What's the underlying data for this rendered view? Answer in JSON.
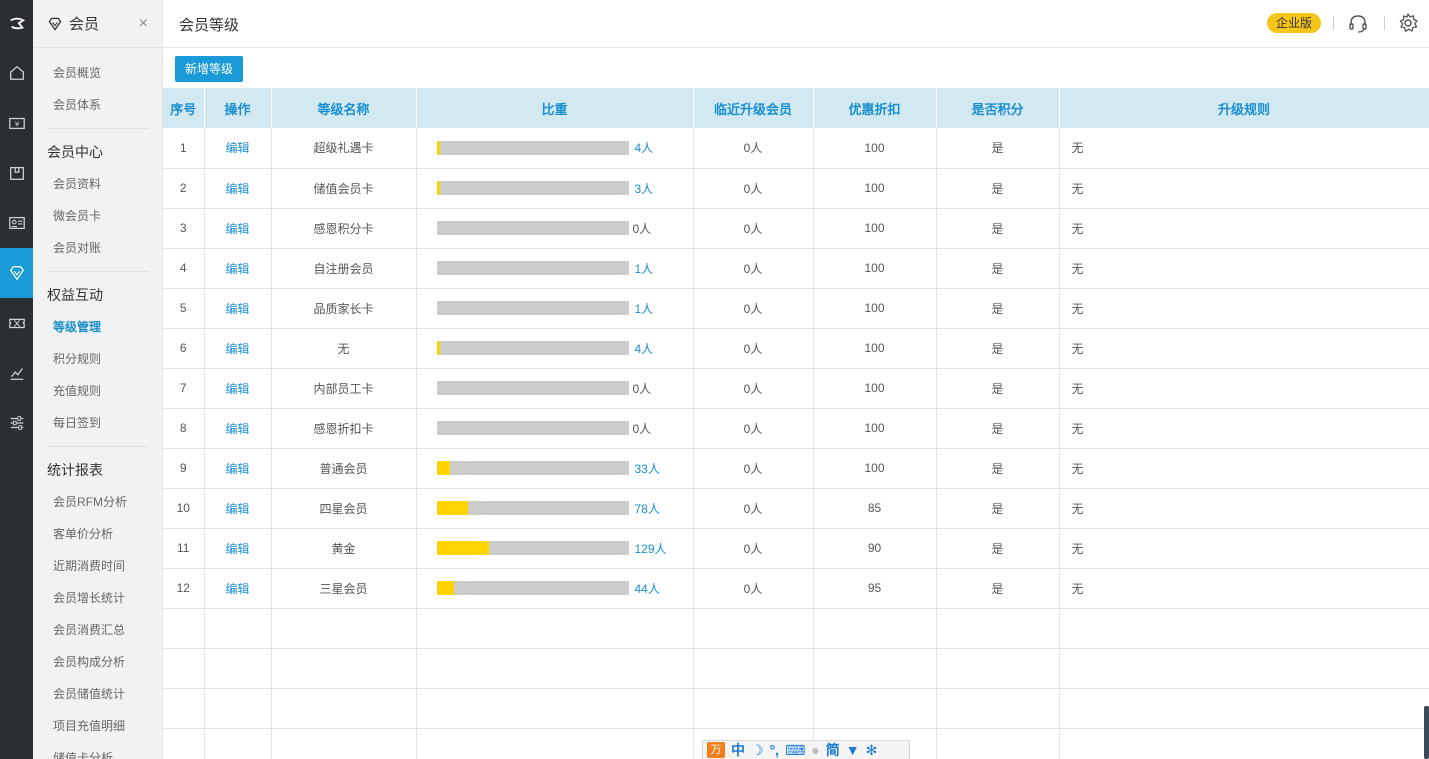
{
  "sidebar": {
    "title": "会员",
    "close": "×",
    "items_top": [
      "会员概览",
      "会员体系"
    ],
    "group1": "会员中心",
    "items_g1": [
      "会员资料",
      "微会员卡",
      "会员对账"
    ],
    "group2": "权益互动",
    "items_g2": [
      "等级管理",
      "积分规则",
      "充值规则",
      "每日签到"
    ],
    "group3": "统计报表",
    "items_g3": [
      "会员RFM分析",
      "客单价分析",
      "近期消费时间",
      "会员增长统计",
      "会员消费汇总",
      "会员构成分析",
      "会员储值统计",
      "项目充值明细",
      "储值卡分析"
    ],
    "active": "等级管理"
  },
  "rail": {
    "icons": [
      "logo-icon",
      "home-icon",
      "cash-icon",
      "box-icon",
      "id-card-icon",
      "diamond-icon",
      "ticket-icon",
      "chart-icon",
      "sliders-icon"
    ],
    "active": "diamond-icon"
  },
  "header": {
    "title": "会员等级",
    "edition": "企业版",
    "icons": [
      "headset-icon",
      "gear-icon"
    ]
  },
  "toolbar": {
    "add_label": "新增等级"
  },
  "table": {
    "columns": [
      "序号",
      "操作",
      "等级名称",
      "比重",
      "临近升级会员",
      "优惠折扣",
      "是否积分",
      "升级规则"
    ],
    "edit_label": "编辑",
    "rows": [
      {
        "no": "1",
        "name": "超级礼遇卡",
        "count": "4人",
        "share": 0.01,
        "near": "0人",
        "discount": "100",
        "points": "是",
        "rule": "无"
      },
      {
        "no": "2",
        "name": "储值会员卡",
        "count": "3人",
        "share": 0.01,
        "near": "0人",
        "discount": "100",
        "points": "是",
        "rule": "无"
      },
      {
        "no": "3",
        "name": "感恩积分卡",
        "count": "0人",
        "share": 0,
        "near": "0人",
        "discount": "100",
        "points": "是",
        "rule": "无"
      },
      {
        "no": "4",
        "name": "自注册会员",
        "count": "1人",
        "share": 0,
        "near": "0人",
        "discount": "100",
        "points": "是",
        "rule": "无"
      },
      {
        "no": "5",
        "name": "品质家长卡",
        "count": "1人",
        "share": 0,
        "near": "0人",
        "discount": "100",
        "points": "是",
        "rule": "无"
      },
      {
        "no": "6",
        "name": "无",
        "count": "4人",
        "share": 0.01,
        "near": "0人",
        "discount": "100",
        "points": "是",
        "rule": "无"
      },
      {
        "no": "7",
        "name": "内部员工卡",
        "count": "0人",
        "share": 0,
        "near": "0人",
        "discount": "100",
        "points": "是",
        "rule": "无"
      },
      {
        "no": "8",
        "name": "感恩折扣卡",
        "count": "0人",
        "share": 0,
        "near": "0人",
        "discount": "100",
        "points": "是",
        "rule": "无"
      },
      {
        "no": "9",
        "name": "普通会员",
        "count": "33人",
        "share": 0.07,
        "near": "0人",
        "discount": "100",
        "points": "是",
        "rule": "无"
      },
      {
        "no": "10",
        "name": "四星会员",
        "count": "78人",
        "share": 0.16,
        "near": "0人",
        "discount": "85",
        "points": "是",
        "rule": "无"
      },
      {
        "no": "11",
        "name": "黄金",
        "count": "129人",
        "share": 0.27,
        "near": "0人",
        "discount": "90",
        "points": "是",
        "rule": "无"
      },
      {
        "no": "12",
        "name": "三星会员",
        "count": "44人",
        "share": 0.09,
        "near": "0人",
        "discount": "95",
        "points": "是",
        "rule": "无"
      }
    ],
    "empty_rows": 4
  },
  "ime": {
    "items": [
      "中",
      "简"
    ]
  },
  "colors": {
    "accent": "#1a9ad6",
    "bar_fill": "#ffd400",
    "bar_track": "#cccccc",
    "rail_bg": "#2b2f33"
  }
}
